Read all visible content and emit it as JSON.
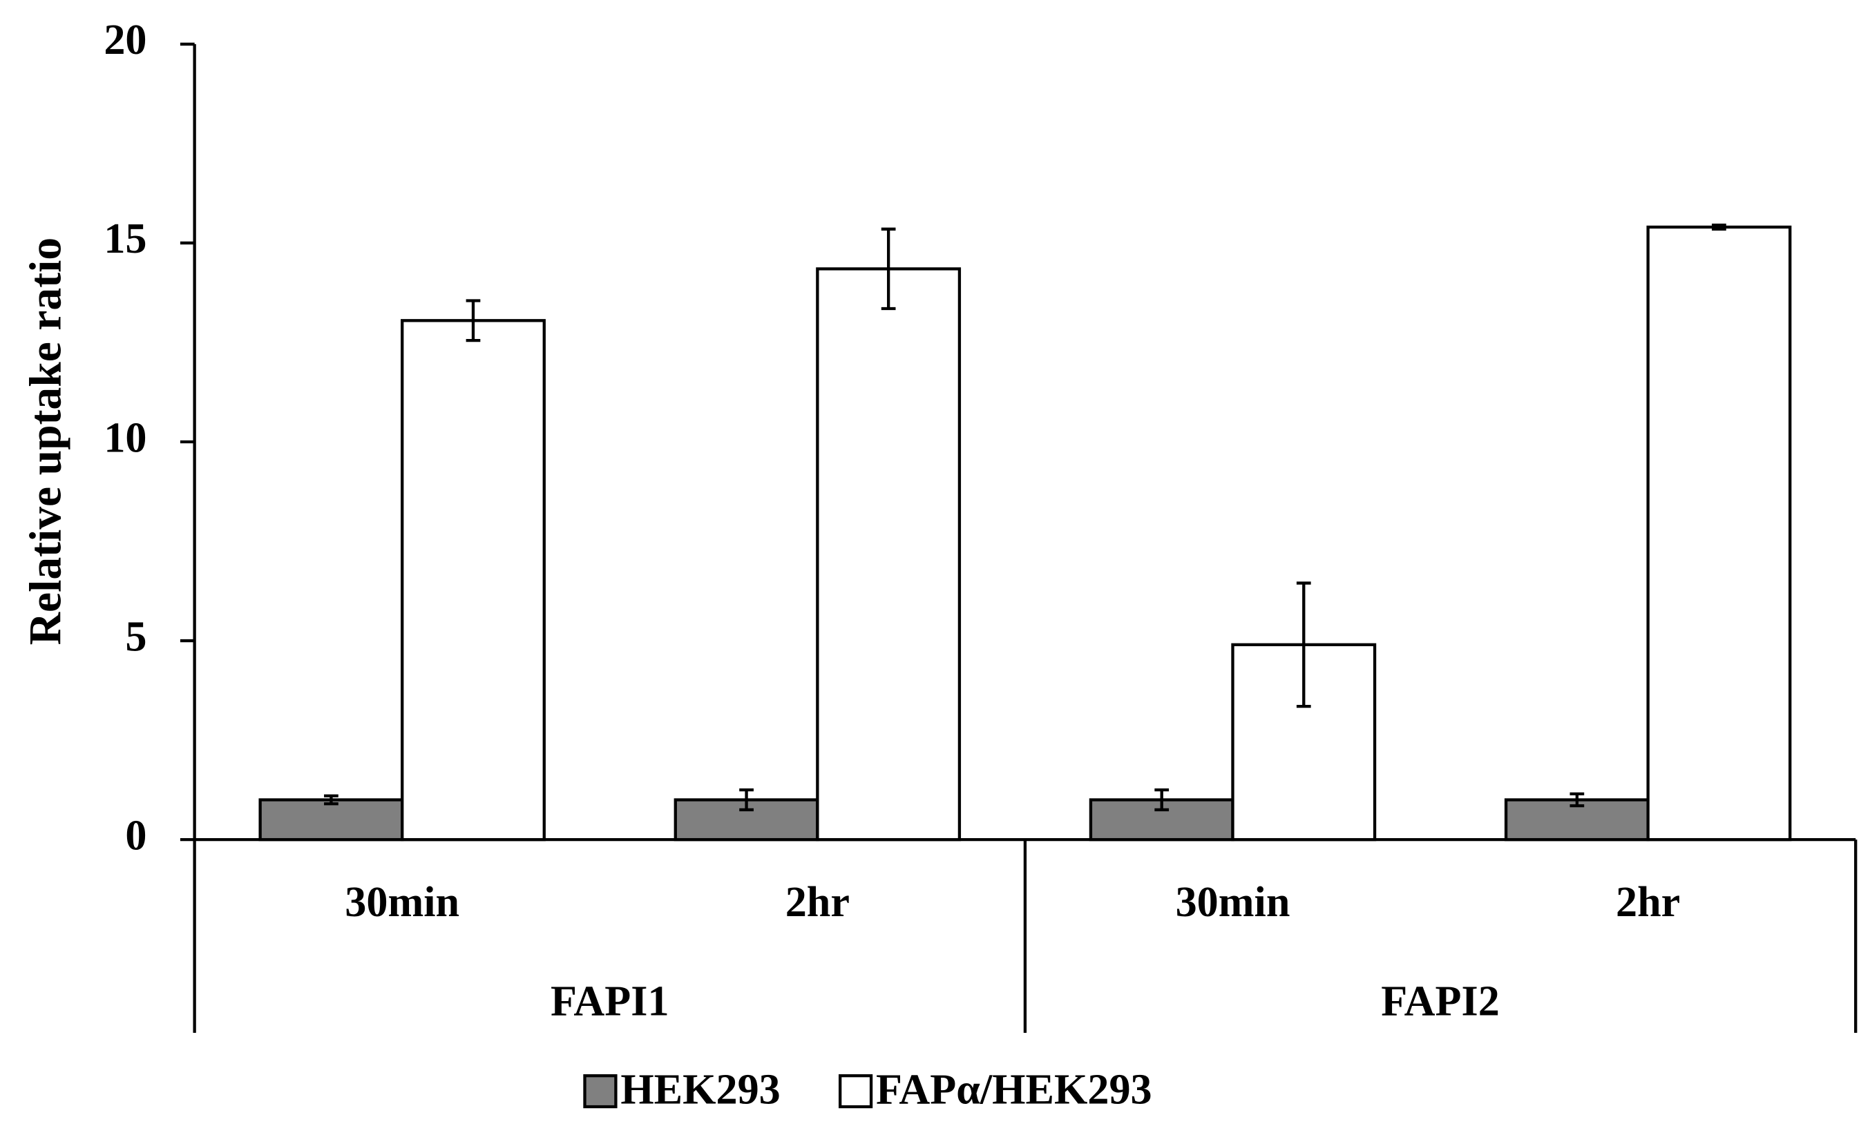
{
  "chart_data": {
    "type": "bar",
    "y_label": "Relative uptake ratio",
    "categories": [
      "30min",
      "2hr",
      "30min",
      "2hr"
    ],
    "groups": [
      "FAPI1",
      "FAPI2"
    ],
    "series": [
      {
        "name": "HEK293",
        "color": "#808080",
        "values": [
          1.0,
          1.0,
          1.0,
          1.0
        ],
        "errors": [
          0.1,
          0.25,
          0.25,
          0.15
        ]
      },
      {
        "name": "FAPα/HEK293",
        "color": "#ffffff",
        "values": [
          13.05,
          14.35,
          4.9,
          15.4
        ],
        "errors": [
          0.5,
          1.0,
          1.55,
          0.05
        ]
      }
    ],
    "ylim": [
      0,
      20
    ],
    "yticks": [
      0,
      5,
      10,
      15,
      20
    ],
    "legend": "bottom"
  }
}
